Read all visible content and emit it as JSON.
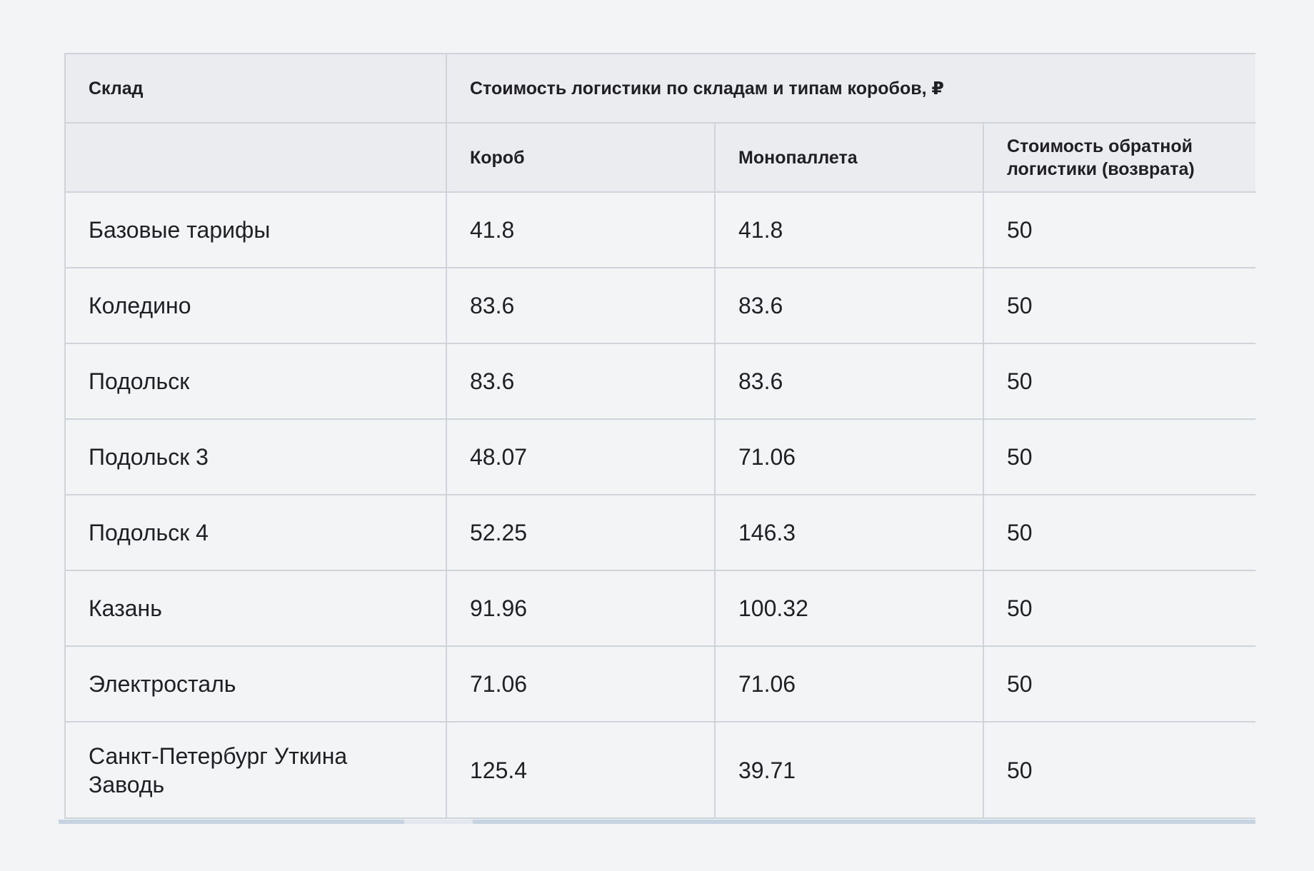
{
  "table": {
    "header": {
      "warehouse": "Склад",
      "group_title": "Стоимость логистики по складам и типам коробов, ₽",
      "box": "Короб",
      "monopallet": "Монопаллета",
      "return_cost": "Стоимость обратной логистики (возврата)"
    },
    "rows": [
      {
        "warehouse": "Базовые тарифы",
        "box": "41.8",
        "monopallet": "41.8",
        "return_cost": "50"
      },
      {
        "warehouse": "Коледино",
        "box": "83.6",
        "monopallet": "83.6",
        "return_cost": "50"
      },
      {
        "warehouse": "Подольск",
        "box": "83.6",
        "monopallet": "83.6",
        "return_cost": "50"
      },
      {
        "warehouse": "Подольск 3",
        "box": "48.07",
        "monopallet": "71.06",
        "return_cost": "50"
      },
      {
        "warehouse": "Подольск 4",
        "box": "52.25",
        "monopallet": "146.3",
        "return_cost": "50"
      },
      {
        "warehouse": "Казань",
        "box": "91.96",
        "monopallet": "100.32",
        "return_cost": "50"
      },
      {
        "warehouse": "Электросталь",
        "box": "71.06",
        "monopallet": "71.06",
        "return_cost": "50"
      },
      {
        "warehouse": "Санкт-Петербург Уткина Заводь",
        "box": "125.4",
        "monopallet": "39.71",
        "return_cost": "50"
      }
    ]
  },
  "colors": {
    "header_bg": "#ebecf0",
    "page_bg": "#f3f4f6",
    "border": "#cfd3da",
    "scrollbar": "#c5d3e3"
  }
}
